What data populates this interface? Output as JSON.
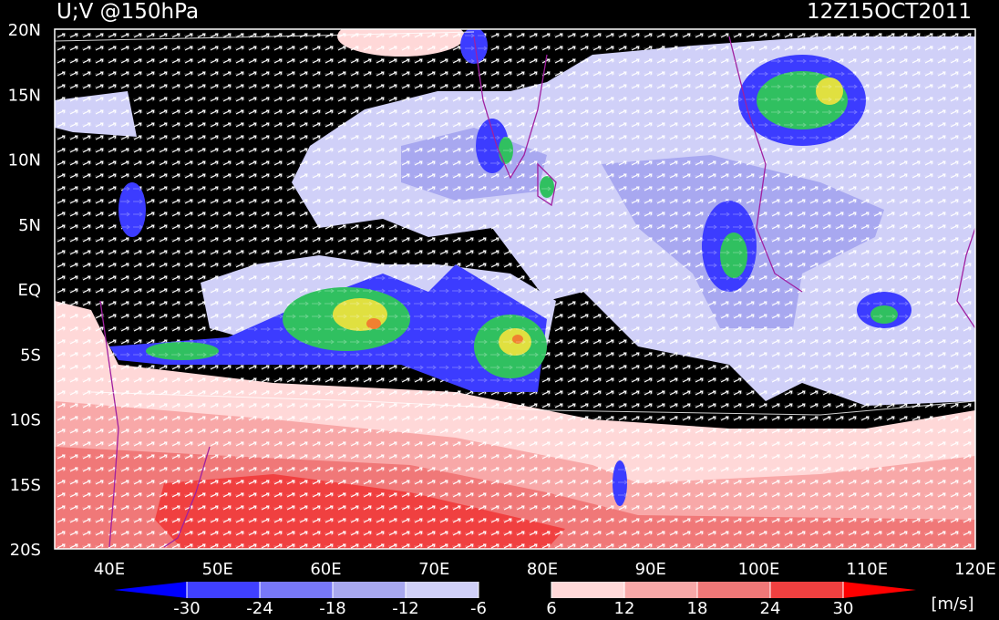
{
  "title": "U;V @150hPa",
  "timestamp": "12Z15OCT2011",
  "lat_labels": [
    "20N",
    "15N",
    "10N",
    "5N",
    "EQ",
    "5S",
    "10S",
    "15S",
    "20S"
  ],
  "lon_labels": [
    "40E",
    "50E",
    "60E",
    "70E",
    "80E",
    "90E",
    "100E",
    "110E",
    "120E"
  ],
  "colorbar": {
    "ticks": [
      -30,
      -24,
      -18,
      -12,
      -6,
      6,
      12,
      18,
      24,
      30
    ],
    "unit": "[m/s]"
  }
}
